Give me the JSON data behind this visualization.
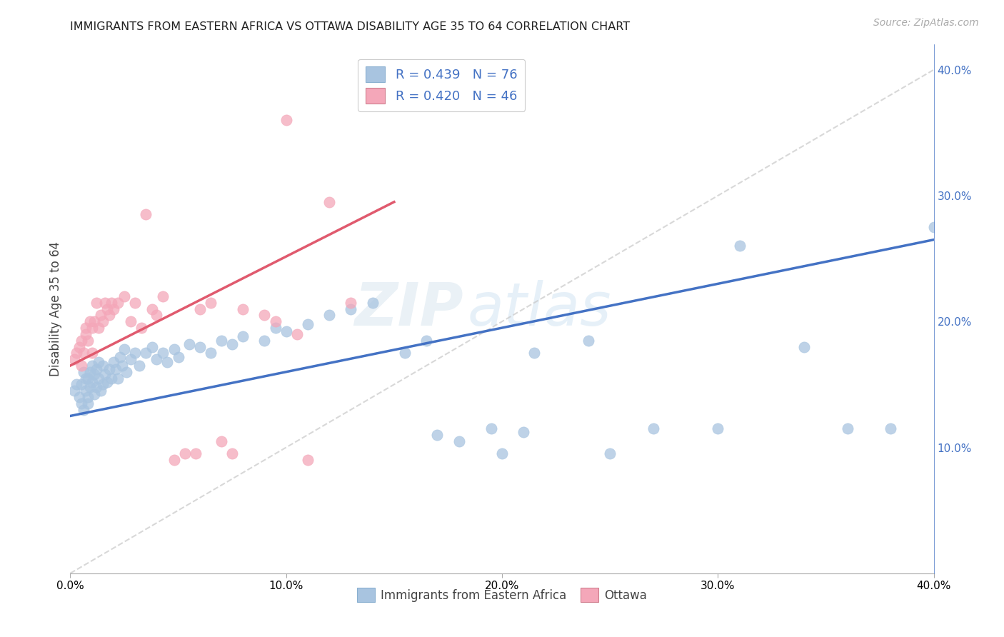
{
  "title": "IMMIGRANTS FROM EASTERN AFRICA VS OTTAWA DISABILITY AGE 35 TO 64 CORRELATION CHART",
  "source": "Source: ZipAtlas.com",
  "ylabel": "Disability Age 35 to 64",
  "xlim": [
    0.0,
    0.4
  ],
  "ylim": [
    0.0,
    0.42
  ],
  "xticks": [
    0.0,
    0.1,
    0.2,
    0.3,
    0.4
  ],
  "xticklabels": [
    "0.0%",
    "10.0%",
    "20.0%",
    "30.0%",
    "40.0%"
  ],
  "yticks_right": [
    0.1,
    0.2,
    0.3,
    0.4
  ],
  "ytick_labels_right": [
    "10.0%",
    "20.0%",
    "30.0%",
    "40.0%"
  ],
  "blue_R": 0.439,
  "blue_N": 76,
  "pink_R": 0.42,
  "pink_N": 46,
  "blue_color": "#a8c4e0",
  "pink_color": "#f4a7b9",
  "blue_line_color": "#4472c4",
  "pink_line_color": "#e05a6e",
  "diag_line_color": "#c8c8c8",
  "legend_text_color": "#4472c4",
  "watermark_zip": "ZIP",
  "watermark_atlas": "atlas",
  "background_color": "#ffffff",
  "grid_color": "#d3d3d3",
  "blue_scatter_x": [
    0.002,
    0.003,
    0.004,
    0.005,
    0.005,
    0.006,
    0.006,
    0.007,
    0.007,
    0.008,
    0.008,
    0.008,
    0.009,
    0.009,
    0.01,
    0.01,
    0.011,
    0.011,
    0.012,
    0.012,
    0.013,
    0.013,
    0.014,
    0.015,
    0.015,
    0.016,
    0.017,
    0.018,
    0.019,
    0.02,
    0.021,
    0.022,
    0.023,
    0.024,
    0.025,
    0.026,
    0.028,
    0.03,
    0.032,
    0.035,
    0.038,
    0.04,
    0.043,
    0.045,
    0.048,
    0.05,
    0.055,
    0.06,
    0.065,
    0.07,
    0.075,
    0.08,
    0.09,
    0.095,
    0.1,
    0.11,
    0.12,
    0.13,
    0.14,
    0.155,
    0.165,
    0.17,
    0.18,
    0.195,
    0.2,
    0.21,
    0.215,
    0.24,
    0.25,
    0.27,
    0.3,
    0.31,
    0.34,
    0.36,
    0.38,
    0.4
  ],
  "blue_scatter_y": [
    0.145,
    0.15,
    0.14,
    0.135,
    0.15,
    0.16,
    0.13,
    0.145,
    0.155,
    0.135,
    0.14,
    0.155,
    0.148,
    0.16,
    0.152,
    0.165,
    0.158,
    0.142,
    0.148,
    0.162,
    0.155,
    0.168,
    0.145,
    0.15,
    0.165,
    0.158,
    0.152,
    0.162,
    0.155,
    0.168,
    0.162,
    0.155,
    0.172,
    0.165,
    0.178,
    0.16,
    0.17,
    0.175,
    0.165,
    0.175,
    0.18,
    0.17,
    0.175,
    0.168,
    0.178,
    0.172,
    0.182,
    0.18,
    0.175,
    0.185,
    0.182,
    0.188,
    0.185,
    0.195,
    0.192,
    0.198,
    0.205,
    0.21,
    0.215,
    0.175,
    0.185,
    0.11,
    0.105,
    0.115,
    0.095,
    0.112,
    0.175,
    0.185,
    0.095,
    0.115,
    0.115,
    0.26,
    0.18,
    0.115,
    0.115,
    0.275
  ],
  "pink_scatter_x": [
    0.002,
    0.003,
    0.004,
    0.005,
    0.005,
    0.006,
    0.007,
    0.007,
    0.008,
    0.009,
    0.01,
    0.01,
    0.011,
    0.012,
    0.013,
    0.014,
    0.015,
    0.016,
    0.017,
    0.018,
    0.019,
    0.02,
    0.022,
    0.025,
    0.028,
    0.03,
    0.033,
    0.035,
    0.038,
    0.04,
    0.043,
    0.048,
    0.053,
    0.058,
    0.06,
    0.065,
    0.07,
    0.075,
    0.08,
    0.09,
    0.095,
    0.1,
    0.105,
    0.11,
    0.12,
    0.13
  ],
  "pink_scatter_y": [
    0.17,
    0.175,
    0.18,
    0.165,
    0.185,
    0.175,
    0.19,
    0.195,
    0.185,
    0.2,
    0.175,
    0.195,
    0.2,
    0.215,
    0.195,
    0.205,
    0.2,
    0.215,
    0.21,
    0.205,
    0.215,
    0.21,
    0.215,
    0.22,
    0.2,
    0.215,
    0.195,
    0.285,
    0.21,
    0.205,
    0.22,
    0.09,
    0.095,
    0.095,
    0.21,
    0.215,
    0.105,
    0.095,
    0.21,
    0.205,
    0.2,
    0.36,
    0.19,
    0.09,
    0.295,
    0.215
  ],
  "blue_line_x0": 0.0,
  "blue_line_y0": 0.125,
  "blue_line_x1": 0.4,
  "blue_line_y1": 0.265,
  "pink_line_x0": 0.0,
  "pink_line_y0": 0.165,
  "pink_line_x1": 0.15,
  "pink_line_y1": 0.295
}
